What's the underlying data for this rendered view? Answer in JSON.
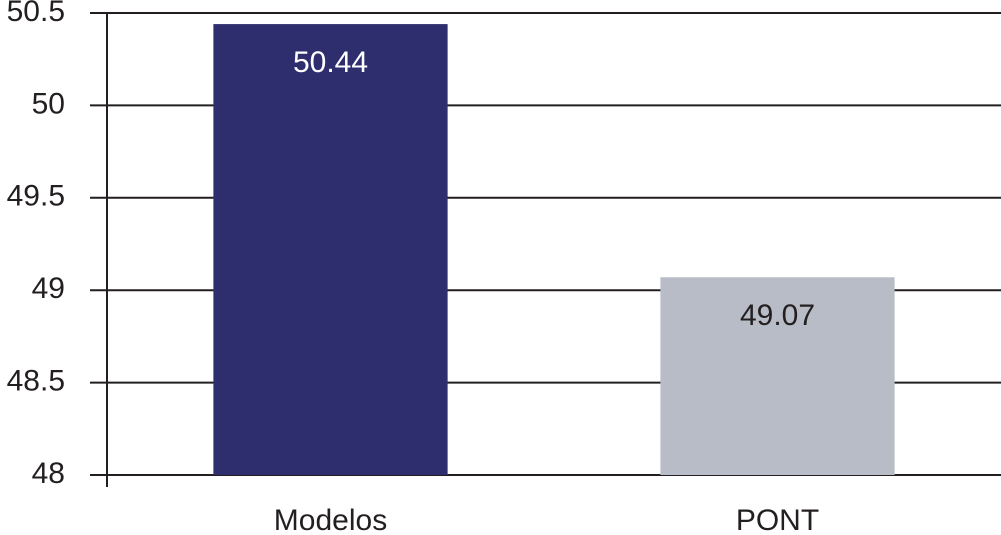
{
  "chart_data": {
    "type": "bar",
    "categories": [
      "Modelos",
      "PONT"
    ],
    "values": [
      50.44,
      49.07
    ],
    "colors": [
      "#2e2d6e",
      "#b8bcc6"
    ],
    "ylim": [
      48,
      50.5
    ],
    "yticks": [
      48,
      48.5,
      49,
      49.5,
      50,
      50.5
    ],
    "grid": true
  }
}
